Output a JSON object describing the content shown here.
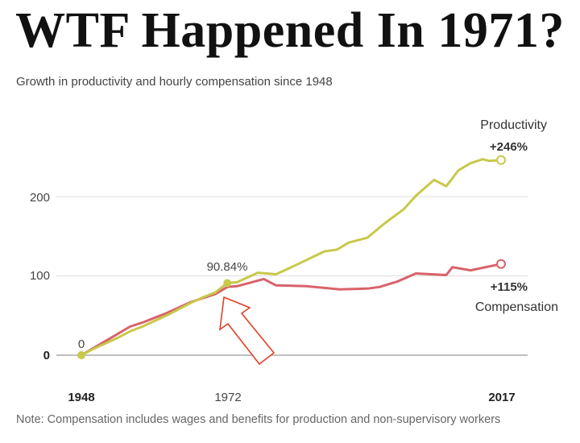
{
  "title": "WTF Happened In 1971?",
  "subtitle": "Growth in productivity and hourly compensation since 1948",
  "note": "Note: Compensation includes wages and benefits for production and non-supervisory workers",
  "chart_data": {
    "type": "line",
    "title": "Growth in productivity and hourly compensation since 1948",
    "xlim": [
      1948,
      2017
    ],
    "ylim": [
      0,
      250
    ],
    "x_ticks": [
      "1948",
      "1972",
      "2017"
    ],
    "y_ticks": [
      "0",
      "100",
      "200"
    ],
    "grid": true,
    "series": [
      {
        "name": "Productivity",
        "end_label": "+246%",
        "color": "#c8c84a",
        "x": [
          1948,
          1950,
          1952,
          1954,
          1956,
          1958,
          1960,
          1962,
          1964,
          1966,
          1968,
          1970,
          1972,
          1973.6,
          1977,
          1980,
          1982,
          1985,
          1988,
          1990,
          1992,
          1995,
          1998,
          2001,
          2003,
          2006,
          2008,
          2010,
          2012,
          2014,
          2015,
          2017
        ],
        "y": [
          0,
          8,
          15,
          22,
          30,
          36,
          43,
          50,
          58,
          66,
          73,
          79,
          91,
          92,
          104,
          102,
          109,
          120,
          131,
          133,
          142,
          148,
          167,
          184,
          201,
          221,
          213,
          233,
          242,
          247,
          245,
          246
        ]
      },
      {
        "name": "Compensation",
        "end_label": "+115%",
        "color": "#d9626a",
        "x": [
          1948,
          1950,
          1952,
          1954,
          1956,
          1958,
          1960,
          1962,
          1964,
          1966,
          1968,
          1970,
          1972,
          1973.6,
          1978,
          1980,
          1985,
          1990.5,
          1995,
          1997,
          2000,
          2003,
          2008,
          2009,
          2012,
          2017
        ],
        "y": [
          0,
          9,
          18,
          27,
          36,
          41,
          47,
          53,
          60,
          67,
          72,
          77,
          86,
          87,
          96,
          88,
          87,
          83,
          84,
          86,
          93,
          103,
          101,
          111,
          107,
          115
        ]
      }
    ],
    "annotations": [
      {
        "x": 1948,
        "y": 0,
        "label": "0"
      },
      {
        "x": 1972,
        "y": 90.84,
        "label": "90.84%"
      }
    ]
  }
}
